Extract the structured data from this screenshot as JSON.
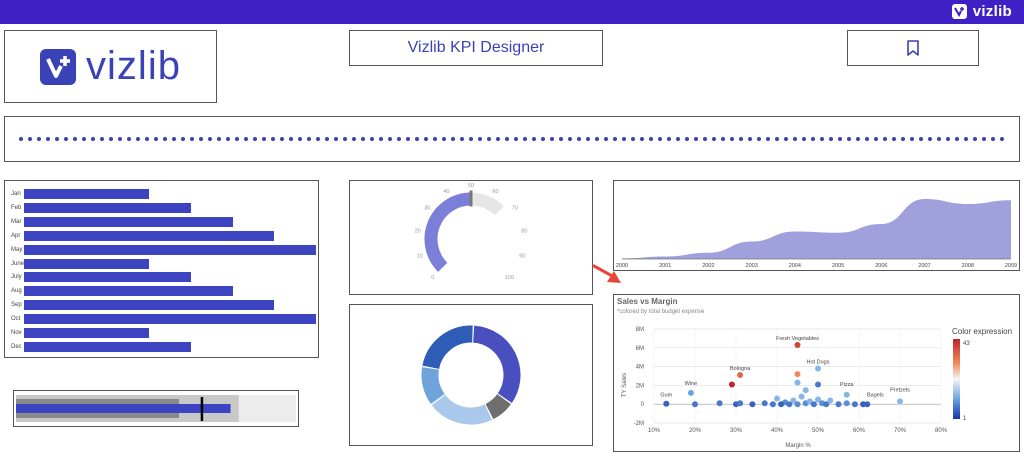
{
  "topbar": {
    "brand": "vizlib",
    "color": "#3d21c4"
  },
  "logo": {
    "brand": "vizlib",
    "color": "#3a42b7",
    "icon": "vizlib-logo-icon"
  },
  "title": {
    "text": "Vizlib KPI Designer"
  },
  "bookmark": {
    "icon": "bookmark-icon"
  },
  "bar_chart": {
    "categories": [
      "Jan",
      "Feb",
      "Mar",
      "Apr",
      "May",
      "June",
      "July",
      "Aug",
      "Sep",
      "Oct",
      "Nov",
      "Dec"
    ],
    "values": [
      3,
      4,
      5,
      6,
      7,
      3,
      4,
      5,
      6,
      7,
      3,
      4
    ],
    "max": 7,
    "color": "#3d44c1"
  },
  "bullet": {
    "value": 0.79,
    "target": 0.68,
    "band1": 0.6,
    "band2": 0.82,
    "band3": 1.0
  },
  "gauge": {
    "ticks": [
      "0",
      "10",
      "20",
      "30",
      "40",
      "50",
      "60",
      "70",
      "80",
      "90",
      "100"
    ],
    "value": 50
  },
  "donut": {
    "segments": [
      {
        "value": 0.34,
        "color": "#4a4fc0"
      },
      {
        "value": 0.08,
        "color": "#6e6e6e"
      },
      {
        "value": 0.22,
        "color": "#a9c8ec"
      },
      {
        "value": 0.13,
        "color": "#6fa3dc"
      },
      {
        "value": 0.23,
        "color": "#2f5cb7"
      }
    ]
  },
  "chart_data": [
    {
      "type": "area",
      "x": [
        "2000",
        "2001",
        "2002",
        "2003",
        "2004",
        "2005",
        "2006",
        "2007",
        "2008",
        "2009"
      ],
      "values": [
        0.5,
        2,
        5,
        14,
        22,
        21,
        28,
        48,
        44,
        47
      ],
      "ylim": [
        0,
        60
      ],
      "color": "#9fa0dc"
    },
    {
      "type": "scatter",
      "title": "Sales vs Margin",
      "subtitle": "*colored by total budget expense",
      "xlabel": "Margin %",
      "ylabel": "TY Sales",
      "xticks": [
        "10%",
        "20%",
        "30%",
        "40%",
        "50%",
        "60%",
        "70%",
        "80%"
      ],
      "yticks": [
        "8M",
        "6M",
        "4M",
        "2M",
        "0",
        "-2M"
      ],
      "xlim": [
        10,
        80
      ],
      "ylim": [
        -2,
        8
      ],
      "legend_title": "Color expression",
      "legend_max": "43",
      "legend_min": "1",
      "labels": [
        {
          "text": "Fresh Vegetables",
          "x": 45,
          "y": 6.3
        },
        {
          "text": "Hot Dogs",
          "x": 50,
          "y": 3.8
        },
        {
          "text": "Bologna",
          "x": 31,
          "y": 3.1
        },
        {
          "text": "Wine",
          "x": 19,
          "y": 1.5
        },
        {
          "text": "Pizza",
          "x": 57,
          "y": 1.4
        },
        {
          "text": "Gum",
          "x": 13,
          "y": 0.3
        },
        {
          "text": "Bagels",
          "x": 64,
          "y": 0.3
        },
        {
          "text": "Pretzels",
          "x": 70,
          "y": 0.8
        }
      ],
      "points": [
        {
          "x": 45,
          "y": 6.3,
          "c": 0.9
        },
        {
          "x": 50,
          "y": 3.8,
          "c": 0.3
        },
        {
          "x": 31,
          "y": 3.1,
          "c": 0.8
        },
        {
          "x": 29,
          "y": 2.1,
          "c": 1.0
        },
        {
          "x": 19,
          "y": 1.2,
          "c": 0.25
        },
        {
          "x": 45,
          "y": 3.2,
          "c": 0.7
        },
        {
          "x": 50,
          "y": 2.1,
          "c": 0.15
        },
        {
          "x": 45,
          "y": 2.3,
          "c": 0.3
        },
        {
          "x": 47,
          "y": 1.5,
          "c": 0.3
        },
        {
          "x": 57,
          "y": 1.0,
          "c": 0.3
        },
        {
          "x": 70,
          "y": 0.3,
          "c": 0.3
        },
        {
          "x": 13,
          "y": 0.05,
          "c": 0.1
        },
        {
          "x": 20,
          "y": 0.0,
          "c": 0.15
        },
        {
          "x": 26,
          "y": 0.1,
          "c": 0.15
        },
        {
          "x": 30,
          "y": 0.0,
          "c": 0.1
        },
        {
          "x": 31,
          "y": 0.1,
          "c": 0.15
        },
        {
          "x": 34,
          "y": 0.0,
          "c": 0.1
        },
        {
          "x": 37,
          "y": 0.1,
          "c": 0.15
        },
        {
          "x": 39,
          "y": 0.0,
          "c": 0.15
        },
        {
          "x": 40,
          "y": 0.6,
          "c": 0.3
        },
        {
          "x": 42,
          "y": 0.2,
          "c": 0.2
        },
        {
          "x": 43,
          "y": 0.0,
          "c": 0.15
        },
        {
          "x": 44,
          "y": 0.4,
          "c": 0.3
        },
        {
          "x": 45,
          "y": 0.0,
          "c": 0.2
        },
        {
          "x": 46,
          "y": 0.8,
          "c": 0.3
        },
        {
          "x": 47,
          "y": 0.1,
          "c": 0.2
        },
        {
          "x": 48,
          "y": 0.3,
          "c": 0.3
        },
        {
          "x": 49,
          "y": 0.0,
          "c": 0.15
        },
        {
          "x": 50,
          "y": 0.5,
          "c": 0.3
        },
        {
          "x": 51,
          "y": 0.1,
          "c": 0.2
        },
        {
          "x": 52,
          "y": 0.0,
          "c": 0.15
        },
        {
          "x": 53,
          "y": 0.4,
          "c": 0.3
        },
        {
          "x": 55,
          "y": 0.0,
          "c": 0.15
        },
        {
          "x": 57,
          "y": 0.1,
          "c": 0.2
        },
        {
          "x": 59,
          "y": 0.0,
          "c": 0.15
        },
        {
          "x": 61,
          "y": 0.0,
          "c": 0.1
        },
        {
          "x": 62,
          "y": 0.0,
          "c": 0.1
        },
        {
          "x": 41,
          "y": 0.0,
          "c": 0.1
        }
      ]
    }
  ]
}
